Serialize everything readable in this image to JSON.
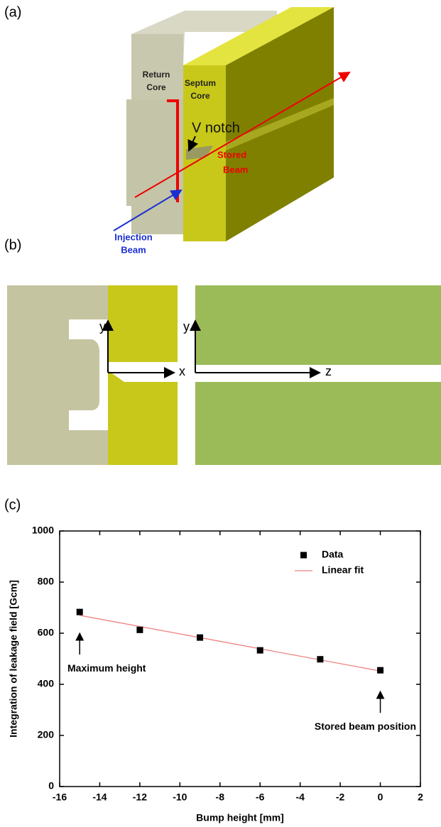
{
  "panels": {
    "a": {
      "label": "(a)",
      "return_core": [
        "Return",
        "Core"
      ],
      "septum_core": [
        "Septum",
        "Core"
      ],
      "v_notch": "V notch",
      "stored_beam": [
        "Stored",
        "Beam"
      ],
      "injection_beam": [
        "Injection",
        "Beam"
      ]
    },
    "b": {
      "label": "(b)",
      "axis_labels": [
        "y",
        "x",
        "y",
        "z"
      ]
    },
    "c": {
      "label": "(c)"
    }
  },
  "chart_data": {
    "type": "scatter",
    "xlabel": "Bump height [mm]",
    "ylabel": "Integration of leakage field [Gcm]",
    "xlim": [
      -16,
      2
    ],
    "xticks": [
      -16,
      -14,
      -12,
      -10,
      -8,
      -6,
      -4,
      -2,
      0,
      2
    ],
    "ylim": [
      0,
      1000
    ],
    "yticks": [
      0,
      200,
      400,
      600,
      800,
      1000
    ],
    "legend": "upper right",
    "series": [
      {
        "name": "Data",
        "type": "scatter",
        "color": "#000000",
        "x": [
          -15,
          -12,
          -9,
          -6,
          -3,
          0
        ],
        "values": [
          683,
          613,
          583,
          533,
          498,
          455
        ]
      },
      {
        "name": "Linear fit",
        "type": "line",
        "color": "#f08080",
        "x": [
          -15,
          0
        ],
        "values": [
          670,
          452
        ]
      }
    ],
    "annotations": [
      "Maximum height",
      "Stored beam position"
    ]
  }
}
